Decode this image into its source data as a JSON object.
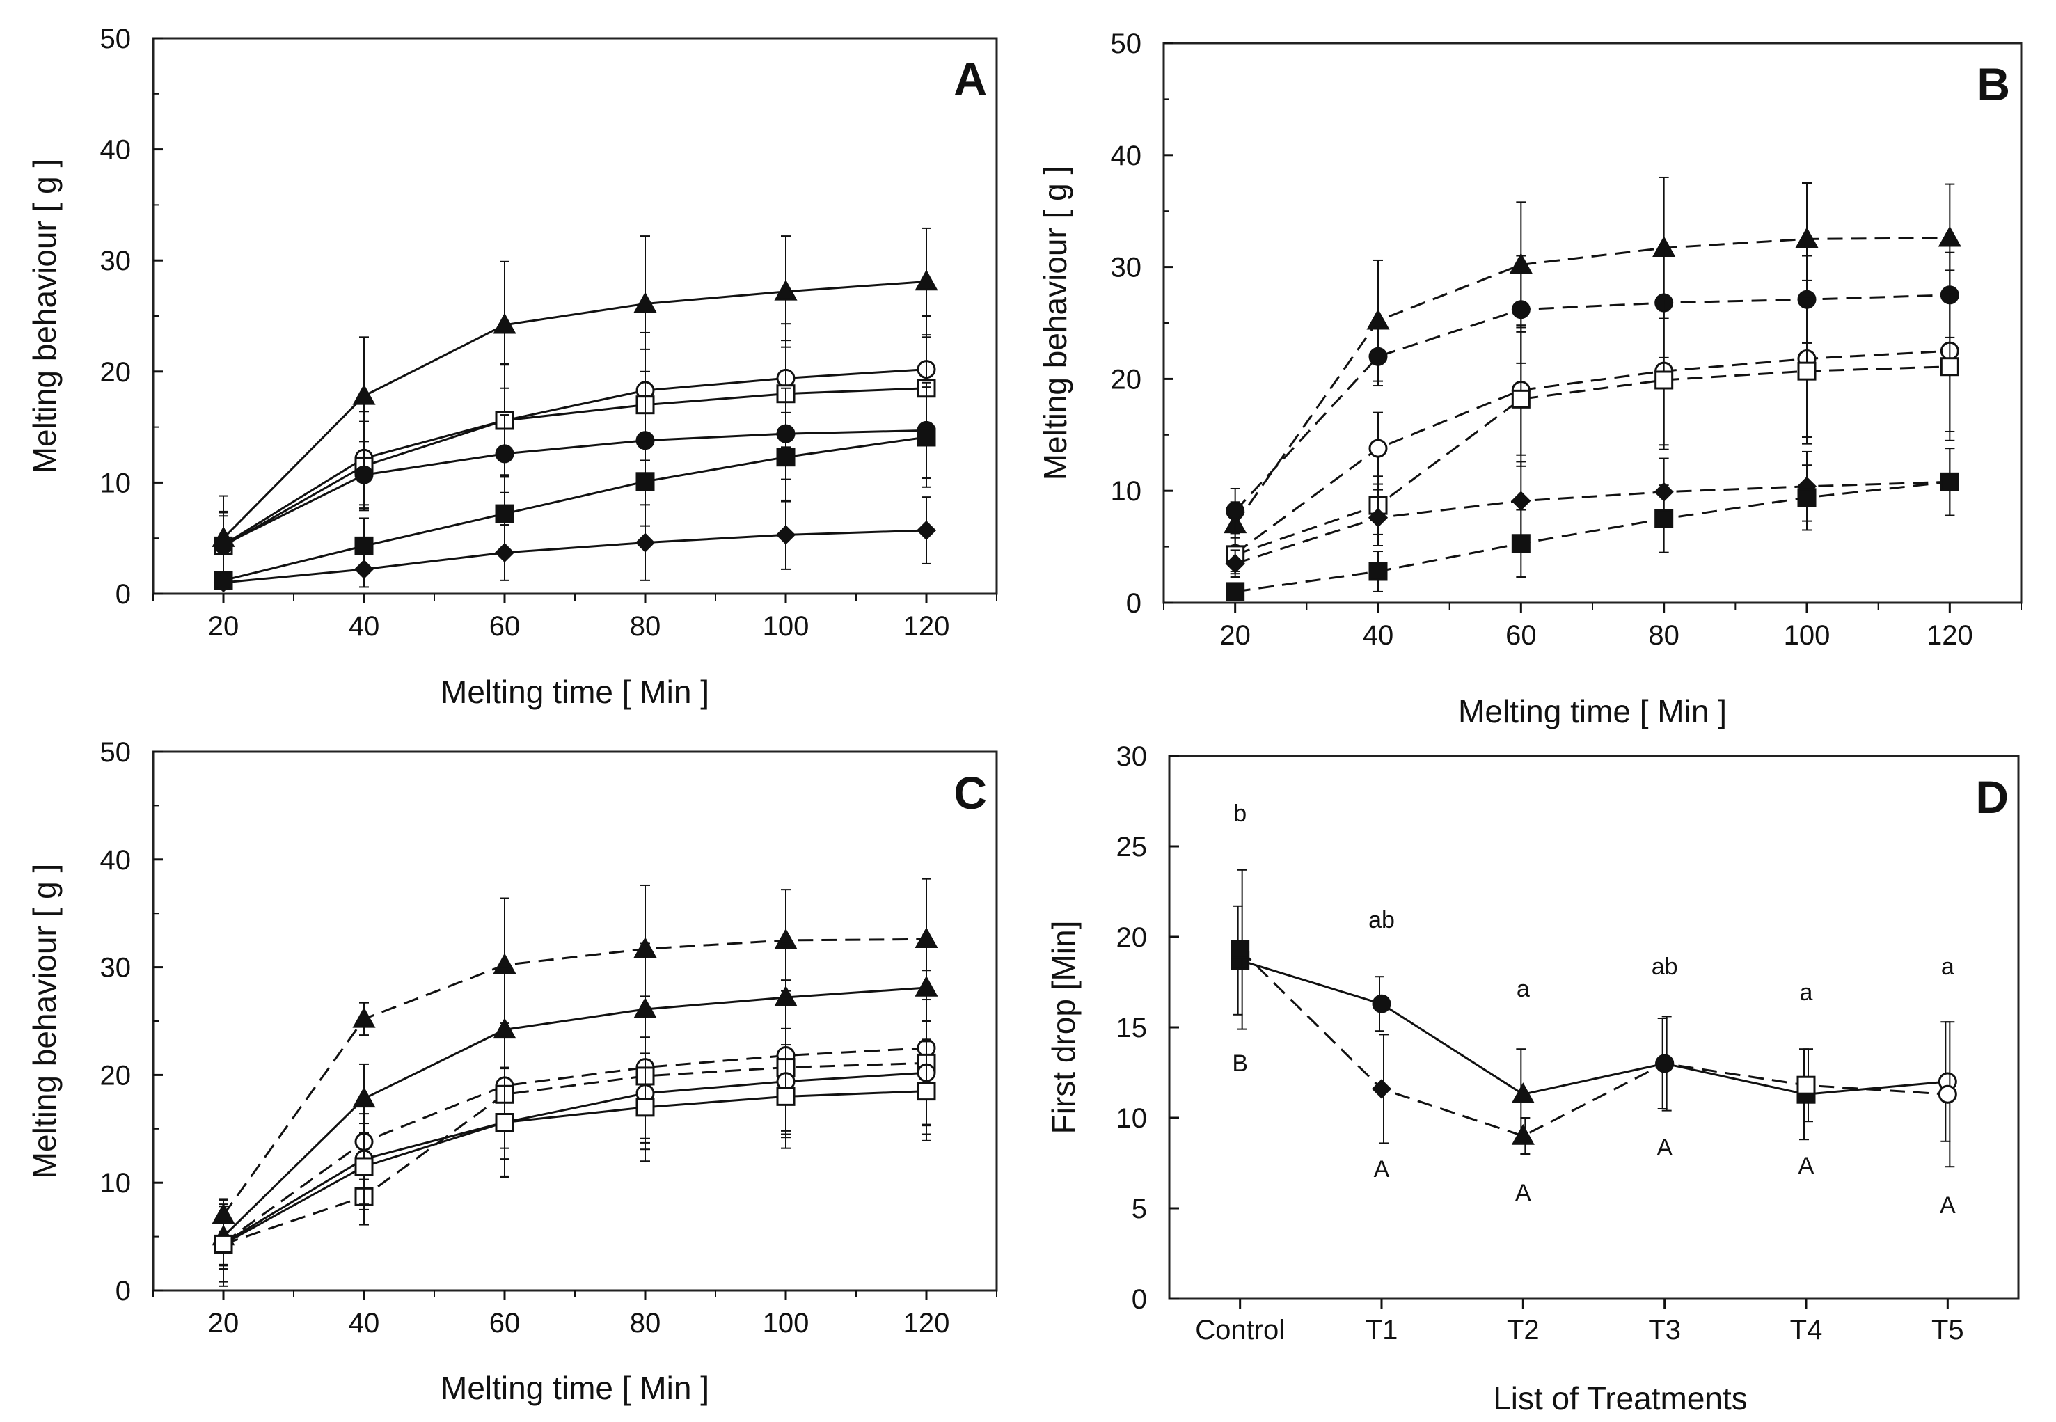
{
  "colors": {
    "ink": "#111111",
    "frame": "#222222",
    "background": "#ffffff"
  },
  "chart_data": [
    {
      "id": "A",
      "type": "line",
      "panel_label": "A",
      "xlabel": "Melting time [ Min ]",
      "ylabel": "Melting behaviour  [ g ]",
      "xlim": [
        10,
        130
      ],
      "ylim": [
        0,
        50
      ],
      "x_ticks": [
        20,
        40,
        60,
        80,
        100,
        120
      ],
      "y_ticks": [
        0,
        10,
        20,
        30,
        40,
        50
      ],
      "x": [
        20,
        40,
        60,
        80,
        100,
        120
      ],
      "series": [
        {
          "name": "triangle-solid",
          "marker": "triangle",
          "filled": true,
          "dashed": false,
          "values": [
            5.0,
            17.8,
            24.2,
            26.1,
            27.2,
            28.1
          ],
          "errors": [
            3.8,
            5.3,
            5.7,
            6.1,
            5.0,
            4.8
          ]
        },
        {
          "name": "circle-open-solid",
          "marker": "circle",
          "filled": false,
          "dashed": false,
          "values": [
            4.4,
            12.2,
            15.6,
            18.3,
            19.4,
            20.2
          ],
          "errors": [
            3.0,
            4.2,
            5.1,
            5.2,
            4.9,
            4.8
          ]
        },
        {
          "name": "square-open-solid",
          "marker": "square",
          "filled": false,
          "dashed": false,
          "values": [
            4.3,
            11.5,
            15.6,
            17.0,
            18.0,
            18.5
          ],
          "errors": [
            3.0,
            4.0,
            5.0,
            5.0,
            4.8,
            4.6
          ]
        },
        {
          "name": "circle-filled-solid",
          "marker": "circle",
          "filled": true,
          "dashed": false,
          "values": [
            4.4,
            10.7,
            12.6,
            13.8,
            14.4,
            14.7
          ],
          "errors": [
            2.6,
            3.0,
            3.5,
            4.0,
            4.1,
            4.3
          ]
        },
        {
          "name": "square-filled-solid",
          "marker": "square",
          "filled": true,
          "dashed": false,
          "values": [
            1.2,
            4.3,
            7.2,
            10.1,
            12.3,
            14.1
          ],
          "errors": [
            0.8,
            2.5,
            3.5,
            4.0,
            4.0,
            4.5
          ]
        },
        {
          "name": "diamond-filled-solid",
          "marker": "diamond",
          "filled": true,
          "dashed": false,
          "values": [
            1.0,
            2.2,
            3.7,
            4.6,
            5.3,
            5.7
          ],
          "errors": [
            0.6,
            1.6,
            2.5,
            3.4,
            3.1,
            3.0
          ]
        }
      ]
    },
    {
      "id": "B",
      "type": "line",
      "panel_label": "B",
      "xlabel": "Melting time [ Min ]",
      "ylabel": "Melting behaviour  [ g ]",
      "xlim": [
        10,
        130
      ],
      "ylim": [
        0,
        50
      ],
      "x_ticks": [
        20,
        40,
        60,
        80,
        100,
        120
      ],
      "y_ticks": [
        0,
        10,
        20,
        30,
        40,
        50
      ],
      "x": [
        20,
        40,
        60,
        80,
        100,
        120
      ],
      "series": [
        {
          "name": "triangle-dashed",
          "marker": "triangle",
          "filled": true,
          "dashed": true,
          "values": [
            7.0,
            25.2,
            30.2,
            31.7,
            32.5,
            32.6
          ],
          "errors": [
            2.0,
            5.4,
            5.6,
            6.3,
            5.0,
            4.8
          ]
        },
        {
          "name": "circle-filled-dashed",
          "marker": "circle",
          "filled": true,
          "dashed": true,
          "values": [
            8.2,
            22.0,
            26.2,
            26.8,
            27.1,
            27.5
          ],
          "errors": [
            2.0,
            2.6,
            4.8,
            4.9,
            3.9,
            3.8
          ]
        },
        {
          "name": "circle-open-dashed",
          "marker": "circle",
          "filled": false,
          "dashed": true,
          "values": [
            4.4,
            13.8,
            19.0,
            20.7,
            21.8,
            22.5
          ],
          "errors": [
            1.8,
            3.2,
            5.8,
            6.6,
            7.0,
            7.2
          ]
        },
        {
          "name": "square-open-dashed",
          "marker": "square",
          "filled": false,
          "dashed": true,
          "values": [
            4.3,
            8.7,
            18.2,
            19.9,
            20.7,
            21.1
          ],
          "errors": [
            1.5,
            2.6,
            6.0,
            6.2,
            6.5,
            6.6
          ]
        },
        {
          "name": "diamond-filled-dashed",
          "marker": "diamond",
          "filled": true,
          "dashed": true,
          "values": [
            3.5,
            7.6,
            9.1,
            9.9,
            10.4,
            10.8
          ],
          "errors": [
            1.2,
            2.5,
            3.5,
            3.0,
            3.1,
            3.0
          ]
        },
        {
          "name": "square-filled-dashed",
          "marker": "square",
          "filled": true,
          "dashed": true,
          "values": [
            1.0,
            2.8,
            5.3,
            7.5,
            9.4,
            10.8
          ],
          "errors": [
            0.6,
            1.8,
            3.0,
            3.0,
            2.9,
            3.0
          ]
        }
      ]
    },
    {
      "id": "C",
      "type": "line",
      "panel_label": "C",
      "xlabel": "Melting time [ Min ]",
      "ylabel": "Melting behaviour  [ g ]",
      "xlim": [
        10,
        130
      ],
      "ylim": [
        0,
        50
      ],
      "x_ticks": [
        20,
        40,
        60,
        80,
        100,
        120
      ],
      "y_ticks": [
        0,
        10,
        20,
        30,
        40,
        50
      ],
      "x": [
        20,
        40,
        60,
        80,
        100,
        120
      ],
      "series": [
        {
          "name": "triangle-dashed",
          "marker": "triangle",
          "filled": true,
          "dashed": true,
          "values": [
            7.0,
            25.2,
            30.2,
            31.7,
            32.5,
            32.6
          ],
          "errors": [
            1.5,
            1.5,
            6.2,
            5.9,
            4.7,
            5.6
          ]
        },
        {
          "name": "triangle-solid",
          "marker": "triangle",
          "filled": true,
          "dashed": false,
          "values": [
            5.0,
            17.8,
            24.2,
            26.1,
            27.2,
            28.1
          ],
          "errors": [
            3.0,
            3.2,
            5.7,
            6.1,
            5.0,
            4.8
          ]
        },
        {
          "name": "circle-open-dashed",
          "marker": "circle",
          "filled": false,
          "dashed": true,
          "values": [
            4.4,
            13.8,
            19.0,
            20.7,
            21.8,
            22.5
          ],
          "errors": [
            2.0,
            3.5,
            5.8,
            6.6,
            7.0,
            7.2
          ]
        },
        {
          "name": "square-open-dashed",
          "marker": "square",
          "filled": false,
          "dashed": true,
          "values": [
            4.3,
            8.7,
            18.2,
            19.9,
            20.7,
            21.1
          ],
          "errors": [
            2.0,
            2.6,
            6.0,
            6.2,
            6.5,
            6.6
          ]
        },
        {
          "name": "circle-open-solid",
          "marker": "circle",
          "filled": false,
          "dashed": false,
          "values": [
            4.4,
            12.2,
            15.6,
            18.3,
            19.4,
            20.2
          ],
          "errors": [
            4.0,
            4.2,
            5.1,
            5.2,
            4.9,
            4.8
          ]
        },
        {
          "name": "square-open-solid",
          "marker": "square",
          "filled": false,
          "dashed": false,
          "values": [
            4.3,
            11.5,
            15.6,
            17.0,
            18.0,
            18.5
          ],
          "errors": [
            3.5,
            4.0,
            5.0,
            5.0,
            4.8,
            4.6
          ]
        }
      ]
    },
    {
      "id": "D",
      "type": "line",
      "panel_label": "D",
      "xlabel": "List of Treatments",
      "ylabel": "First drop  [Min]",
      "ylim": [
        0,
        30
      ],
      "y_ticks": [
        0,
        5,
        10,
        15,
        20,
        25,
        30
      ],
      "categories": [
        "Control",
        "T1",
        "T2",
        "T3",
        "T4",
        "T5"
      ],
      "series": [
        {
          "name": "solid",
          "dashed": false,
          "markers": [
            "square",
            "circle",
            "triangle",
            "circle",
            "square",
            "circle-open"
          ],
          "values": [
            18.7,
            16.3,
            11.3,
            13.0,
            11.3,
            12.0
          ],
          "errors": [
            3.0,
            1.5,
            2.5,
            2.5,
            2.5,
            3.3
          ]
        },
        {
          "name": "dashed",
          "dashed": true,
          "markers": [
            "square",
            "diamond",
            "triangle",
            "circle",
            "square-open",
            "circle-open"
          ],
          "values": [
            19.3,
            11.6,
            9.0,
            13.0,
            11.8,
            11.3
          ],
          "errors": [
            4.4,
            3.0,
            1.0,
            2.6,
            2.0,
            4.0
          ]
        }
      ],
      "annotations_upper": [
        "b",
        "ab",
        "a",
        "ab",
        "a",
        "a"
      ],
      "annotations_lower": [
        "B",
        "A",
        "A",
        "A",
        "A",
        "A"
      ]
    }
  ]
}
